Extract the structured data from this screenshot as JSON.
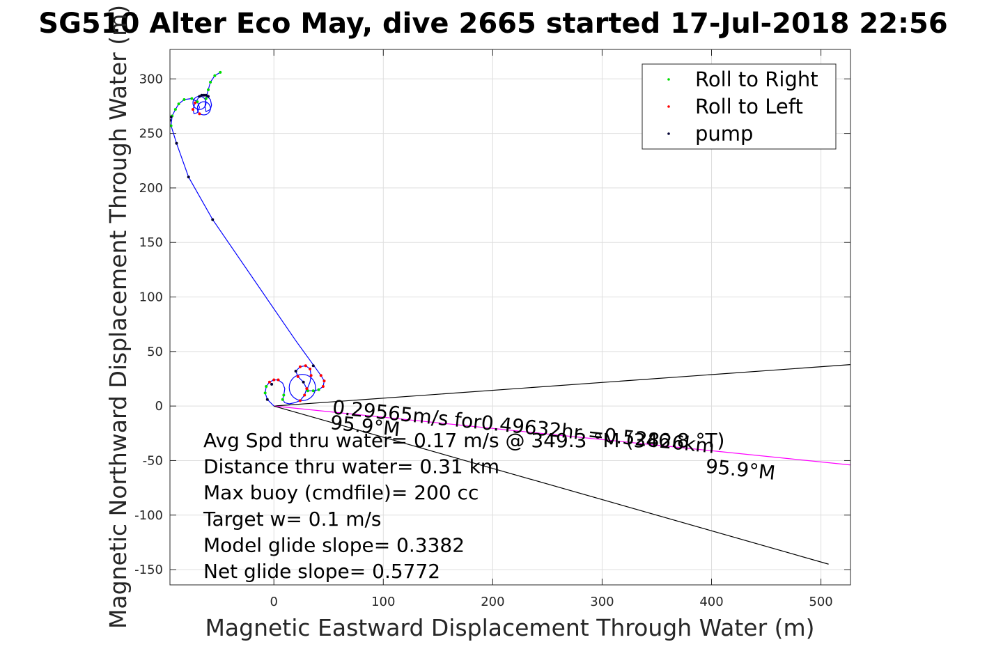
{
  "chart_data": {
    "type": "scatter",
    "title": "SG510 Alter Eco May, dive 2665 started 17-Jul-2018 22:56",
    "xlabel": "Magnetic Eastward Displacement Through Water (m)",
    "ylabel": "Magnetic Northward Displacement Through Water (m)",
    "xlim": [
      -95,
      527
    ],
    "ylim": [
      -164,
      327
    ],
    "xticks": [
      0,
      100,
      200,
      300,
      400,
      500
    ],
    "yticks": [
      -150,
      -100,
      -50,
      0,
      50,
      100,
      150,
      200,
      250,
      300
    ],
    "grid": true,
    "legend": {
      "position": "top-right",
      "entries": [
        {
          "label": "Roll to Right",
          "color": "#00dd00"
        },
        {
          "label": "Roll to Left",
          "color": "#ff0000"
        },
        {
          "label": "pump",
          "color": "#000033"
        }
      ]
    },
    "track": {
      "color": "#0000ff",
      "points": [
        [
          0,
          0
        ],
        [
          -6,
          6
        ],
        [
          -8,
          12
        ],
        [
          -7,
          18
        ],
        [
          -4,
          22
        ],
        [
          0,
          24
        ],
        [
          4,
          24
        ],
        [
          8,
          21
        ],
        [
          10,
          16
        ],
        [
          9,
          10
        ],
        [
          8,
          6
        ],
        [
          10,
          3
        ],
        [
          14,
          2
        ],
        [
          19,
          3
        ],
        [
          24,
          5
        ],
        [
          28,
          10
        ],
        [
          30,
          16
        ],
        [
          27,
          22
        ],
        [
          22,
          27
        ],
        [
          20,
          32
        ],
        [
          24,
          36
        ],
        [
          29,
          37
        ],
        [
          33,
          34
        ],
        [
          34,
          28
        ],
        [
          33,
          22
        ],
        [
          31,
          17
        ],
        [
          31,
          14
        ],
        [
          36,
          14
        ],
        [
          41,
          15
        ],
        [
          45,
          18
        ],
        [
          46,
          23
        ],
        [
          43,
          28
        ],
        [
          38,
          35
        ],
        [
          20,
          60
        ],
        [
          -56,
          171
        ],
        [
          -78,
          210
        ],
        [
          -89,
          241
        ],
        [
          -94,
          257
        ],
        [
          -93,
          266
        ],
        [
          -90,
          272
        ],
        [
          -87,
          277
        ],
        [
          -82,
          281
        ],
        [
          -75,
          282
        ],
        [
          -70,
          279
        ],
        [
          -68,
          274
        ],
        [
          -70,
          269
        ],
        [
          -73,
          268
        ],
        [
          -74,
          272
        ],
        [
          -72,
          278
        ],
        [
          -68,
          284
        ],
        [
          -62,
          285
        ],
        [
          -58,
          281
        ],
        [
          -57,
          276
        ],
        [
          -58,
          272
        ],
        [
          -62,
          270
        ],
        [
          -63,
          275
        ],
        [
          -62,
          282
        ],
        [
          -60,
          290
        ],
        [
          -58,
          297
        ],
        [
          -54,
          303
        ],
        [
          -49,
          306
        ]
      ]
    },
    "circles": [
      {
        "center": [
          -64,
          273
        ],
        "radius": 6
      },
      {
        "center": [
          -68,
          278
        ],
        "radius": 6
      },
      {
        "center": [
          26,
          17
        ],
        "radius": 12
      }
    ],
    "roll_right_points": [
      [
        -94,
        257
      ],
      [
        -93,
        266
      ],
      [
        -90,
        272
      ],
      [
        -87,
        277
      ],
      [
        -82,
        281
      ],
      [
        -75,
        282
      ],
      [
        -70,
        279
      ],
      [
        -62,
        282
      ],
      [
        -60,
        290
      ],
      [
        -58,
        297
      ],
      [
        -54,
        303
      ],
      [
        -49,
        306
      ],
      [
        9,
        10
      ],
      [
        8,
        6
      ],
      [
        31,
        14
      ],
      [
        36,
        14
      ],
      [
        41,
        15
      ],
      [
        -8,
        12
      ],
      [
        -7,
        18
      ]
    ],
    "roll_left_points": [
      [
        -72,
        278
      ],
      [
        -68,
        268
      ],
      [
        -74,
        272
      ],
      [
        -4,
        22
      ],
      [
        0,
        24
      ],
      [
        4,
        24
      ],
      [
        24,
        5
      ],
      [
        28,
        10
      ],
      [
        30,
        16
      ],
      [
        22,
        27
      ],
      [
        24,
        36
      ],
      [
        29,
        37
      ],
      [
        33,
        34
      ],
      [
        34,
        28
      ],
      [
        43,
        28
      ],
      [
        45,
        18
      ],
      [
        46,
        23
      ]
    ],
    "pump_points": [
      [
        -89,
        241
      ],
      [
        -78,
        210
      ],
      [
        -56,
        171
      ],
      [
        36,
        37
      ],
      [
        -68,
        284
      ],
      [
        -66,
        285
      ],
      [
        -64,
        285
      ],
      [
        -62,
        285
      ],
      [
        -60,
        284
      ],
      [
        -95,
        262
      ],
      [
        -94,
        265
      ],
      [
        -6,
        6
      ],
      [
        -2,
        20
      ],
      [
        20,
        32
      ],
      [
        27,
        22
      ]
    ],
    "lines": [
      {
        "name": "",
        "color": "#000000",
        "points": [
          [
            0,
            0
          ],
          [
            527,
            38
          ]
        ]
      },
      {
        "name": "",
        "color": "#ff00ff",
        "points": [
          [
            0,
            0
          ],
          [
            527,
            -54
          ]
        ]
      },
      {
        "name": "",
        "color": "#000000",
        "points": [
          [
            0,
            0
          ],
          [
            507,
            -145
          ]
        ]
      }
    ],
    "annotations": [
      {
        "text": "0.29565m/s for0.49632hr =0.52826km",
        "at": [
          53,
          -7
        ],
        "rotation_deg": 5.9,
        "size": 28
      },
      {
        "text": "95.9°M",
        "at": [
          51,
          -21
        ],
        "rotation_deg": 5.9,
        "size": 28
      },
      {
        "text": "95.9°M",
        "at": [
          394,
          -61
        ],
        "rotation_deg": 5.9,
        "size": 28
      }
    ],
    "stats": [
      "Avg Spd thru water=  0.17 m/s @ 349.3 °M (346.8 °T)",
      "Distance thru water=  0.31 km",
      "Max buoy (cmdfile)= 200 cc",
      "Target w= 0.1 m/s",
      "Model glide slope= 0.3382",
      "Net glide slope= 0.5772"
    ]
  }
}
